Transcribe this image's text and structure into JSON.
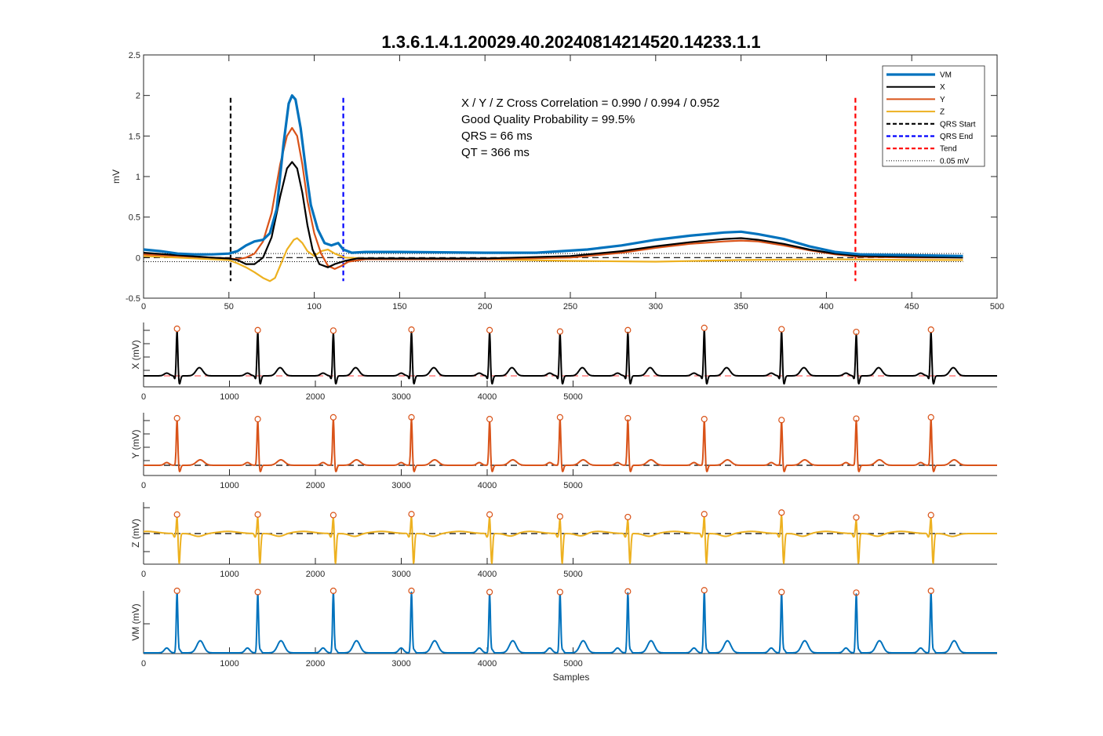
{
  "title": "1.3.6.1.4.1.20029.40.20240814214520.14233.1.1",
  "colors": {
    "vm": "#0072BD",
    "x": "#000000",
    "y": "#D95319",
    "z": "#EDB120",
    "qrs_start": "#000000",
    "qrs_end": "#0000FF",
    "tend": "#FF0000",
    "peak_marker": "#D95319",
    "baseline_x": "#FF6060",
    "baseline_other": "#000000"
  },
  "annotations": [
    "X / Y / Z Cross Correlation = 0.990 / 0.994 / 0.952",
    "Good Quality Probability = 99.5%",
    "QRS = 66 ms",
    "QT = 366 ms"
  ],
  "legend": {
    "placement": "top-right",
    "entries": [
      {
        "label": "VM",
        "style": "solid-thick",
        "color_key": "vm"
      },
      {
        "label": "X",
        "style": "solid",
        "color_key": "x"
      },
      {
        "label": "Y",
        "style": "solid",
        "color_key": "y"
      },
      {
        "label": "Z",
        "style": "solid",
        "color_key": "z"
      },
      {
        "label": "QRS Start",
        "style": "dashed",
        "color_key": "qrs_start"
      },
      {
        "label": "QRS End",
        "style": "dashed",
        "color_key": "qrs_end"
      },
      {
        "label": "Tend",
        "style": "dashed",
        "color_key": "tend"
      },
      {
        "label": "0.05 mV",
        "style": "dotted",
        "color_key": "qrs_start"
      }
    ]
  },
  "chart_data": [
    {
      "type": "line",
      "xlim": [
        0,
        500
      ],
      "ylim": [
        -0.5,
        2.5
      ],
      "xticks": [
        "0",
        "50",
        "100",
        "150",
        "200",
        "250",
        "300",
        "350",
        "400",
        "450",
        "500"
      ],
      "yticks": [
        "-0.5",
        "0",
        "0.5",
        "1",
        "1.5",
        "2",
        "2.5"
      ],
      "xlabel": "",
      "ylabel": "mV",
      "markers": {
        "qrs_start": 51,
        "qrs_end": 117,
        "tend": 417,
        "threshold": 0.05
      },
      "series": [
        {
          "name": "VM",
          "color_key": "vm",
          "points": [
            [
              0,
              0.1
            ],
            [
              10,
              0.08
            ],
            [
              20,
              0.05
            ],
            [
              30,
              0.04
            ],
            [
              40,
              0.04
            ],
            [
              50,
              0.05
            ],
            [
              55,
              0.08
            ],
            [
              60,
              0.15
            ],
            [
              65,
              0.2
            ],
            [
              70,
              0.22
            ],
            [
              74,
              0.3
            ],
            [
              78,
              0.6
            ],
            [
              82,
              1.4
            ],
            [
              85,
              1.9
            ],
            [
              87,
              2.0
            ],
            [
              89,
              1.95
            ],
            [
              92,
              1.6
            ],
            [
              95,
              1.1
            ],
            [
              98,
              0.65
            ],
            [
              102,
              0.35
            ],
            [
              106,
              0.18
            ],
            [
              110,
              0.15
            ],
            [
              114,
              0.18
            ],
            [
              117,
              0.1
            ],
            [
              122,
              0.06
            ],
            [
              130,
              0.07
            ],
            [
              150,
              0.07
            ],
            [
              200,
              0.06
            ],
            [
              230,
              0.06
            ],
            [
              260,
              0.1
            ],
            [
              280,
              0.15
            ],
            [
              300,
              0.22
            ],
            [
              320,
              0.27
            ],
            [
              340,
              0.31
            ],
            [
              350,
              0.32
            ],
            [
              360,
              0.29
            ],
            [
              375,
              0.23
            ],
            [
              390,
              0.14
            ],
            [
              405,
              0.07
            ],
            [
              420,
              0.04
            ],
            [
              450,
              0.03
            ],
            [
              480,
              0.02
            ]
          ]
        },
        {
          "name": "X",
          "color_key": "x",
          "points": [
            [
              0,
              0.06
            ],
            [
              20,
              0.03
            ],
            [
              40,
              0.0
            ],
            [
              50,
              -0.01
            ],
            [
              55,
              -0.03
            ],
            [
              60,
              -0.08
            ],
            [
              65,
              -0.08
            ],
            [
              70,
              0.0
            ],
            [
              75,
              0.25
            ],
            [
              80,
              0.75
            ],
            [
              84,
              1.1
            ],
            [
              87,
              1.18
            ],
            [
              90,
              1.1
            ],
            [
              93,
              0.8
            ],
            [
              96,
              0.4
            ],
            [
              99,
              0.1
            ],
            [
              103,
              -0.08
            ],
            [
              108,
              -0.12
            ],
            [
              112,
              -0.08
            ],
            [
              118,
              -0.04
            ],
            [
              125,
              -0.01
            ],
            [
              150,
              -0.01
            ],
            [
              200,
              -0.01
            ],
            [
              250,
              0.02
            ],
            [
              280,
              0.08
            ],
            [
              300,
              0.14
            ],
            [
              320,
              0.19
            ],
            [
              340,
              0.23
            ],
            [
              350,
              0.24
            ],
            [
              360,
              0.22
            ],
            [
              375,
              0.17
            ],
            [
              390,
              0.1
            ],
            [
              405,
              0.05
            ],
            [
              420,
              0.02
            ],
            [
              450,
              0.01
            ],
            [
              480,
              0.0
            ]
          ]
        },
        {
          "name": "Y",
          "color_key": "y",
          "points": [
            [
              0,
              0.04
            ],
            [
              20,
              0.02
            ],
            [
              40,
              0.0
            ],
            [
              50,
              -0.01
            ],
            [
              55,
              -0.02
            ],
            [
              60,
              0.0
            ],
            [
              65,
              0.05
            ],
            [
              70,
              0.2
            ],
            [
              75,
              0.55
            ],
            [
              80,
              1.15
            ],
            [
              84,
              1.5
            ],
            [
              87,
              1.6
            ],
            [
              90,
              1.5
            ],
            [
              93,
              1.15
            ],
            [
              96,
              0.7
            ],
            [
              100,
              0.3
            ],
            [
              104,
              0.05
            ],
            [
              108,
              -0.1
            ],
            [
              112,
              -0.14
            ],
            [
              116,
              -0.1
            ],
            [
              120,
              -0.05
            ],
            [
              130,
              -0.02
            ],
            [
              150,
              -0.02
            ],
            [
              200,
              -0.02
            ],
            [
              250,
              0.0
            ],
            [
              280,
              0.06
            ],
            [
              300,
              0.12
            ],
            [
              320,
              0.17
            ],
            [
              340,
              0.2
            ],
            [
              350,
              0.21
            ],
            [
              360,
              0.2
            ],
            [
              375,
              0.15
            ],
            [
              390,
              0.09
            ],
            [
              405,
              0.04
            ],
            [
              420,
              0.01
            ],
            [
              450,
              0.0
            ],
            [
              480,
              0.0
            ]
          ]
        },
        {
          "name": "Z",
          "color_key": "z",
          "points": [
            [
              0,
              0.02
            ],
            [
              20,
              0.0
            ],
            [
              40,
              -0.02
            ],
            [
              50,
              -0.03
            ],
            [
              55,
              -0.07
            ],
            [
              60,
              -0.12
            ],
            [
              65,
              -0.18
            ],
            [
              70,
              -0.25
            ],
            [
              74,
              -0.29
            ],
            [
              77,
              -0.25
            ],
            [
              80,
              -0.1
            ],
            [
              84,
              0.1
            ],
            [
              88,
              0.22
            ],
            [
              90,
              0.24
            ],
            [
              93,
              0.18
            ],
            [
              96,
              0.08
            ],
            [
              100,
              0.02
            ],
            [
              104,
              0.08
            ],
            [
              108,
              0.1
            ],
            [
              112,
              0.05
            ],
            [
              118,
              0.0
            ],
            [
              130,
              -0.01
            ],
            [
              200,
              -0.02
            ],
            [
              250,
              -0.04
            ],
            [
              300,
              -0.05
            ],
            [
              350,
              -0.03
            ],
            [
              400,
              -0.02
            ],
            [
              450,
              -0.03
            ],
            [
              480,
              -0.03
            ]
          ]
        }
      ]
    },
    {
      "type": "line",
      "ylabel": "X (mV)",
      "xlabel": "",
      "xlim": [
        0,
        6000
      ],
      "xticks": [
        "0",
        "1000",
        "2000",
        "3000",
        "4000",
        "5000"
      ],
      "series": [
        {
          "name": "X",
          "color_key": "x"
        }
      ],
      "beats": [
        390,
        1330,
        2210,
        3120,
        4030,
        4850,
        5640,
        6530,
        7430,
        8300,
        9170
      ],
      "peaks": [
        1.0,
        0.97,
        0.96,
        0.98,
        0.97,
        0.94,
        0.97,
        1.02,
        0.99,
        0.93,
        0.98
      ],
      "peak_labels": "circles"
    },
    {
      "type": "line",
      "ylabel": "Y (mV)",
      "xlabel": "",
      "xlim": [
        0,
        6000
      ],
      "xticks": [
        "0",
        "1000",
        "2000",
        "3000",
        "4000",
        "5000"
      ],
      "series": [
        {
          "name": "Y",
          "color_key": "y"
        }
      ],
      "beats": [
        390,
        1330,
        2210,
        3120,
        4030,
        4850,
        5640,
        6530,
        7430,
        8300,
        9170
      ],
      "peaks": [
        1.0,
        0.98,
        1.02,
        1.02,
        0.98,
        1.02,
        1.0,
        0.98,
        0.96,
        0.99,
        1.02
      ]
    },
    {
      "type": "line",
      "ylabel": "Z (mV)",
      "xlabel": "",
      "xlim": [
        0,
        6000
      ],
      "xticks": [
        "0",
        "1000",
        "2000",
        "3000",
        "4000",
        "5000"
      ],
      "series": [
        {
          "name": "Z",
          "color_key": "z"
        }
      ],
      "beats": [
        390,
        1330,
        2210,
        3120,
        4030,
        4850,
        5640,
        6530,
        7430,
        8300,
        9170
      ],
      "peaks": [
        0.9,
        0.9,
        0.87,
        0.92,
        0.9,
        0.8,
        0.77,
        0.92,
        1.0,
        0.75,
        0.87
      ]
    },
    {
      "type": "line",
      "ylabel": "VM (mV)",
      "xlabel": "Samples",
      "xlim": [
        0,
        6000
      ],
      "xticks": [
        "0",
        "1000",
        "2000",
        "3000",
        "4000",
        "5000"
      ],
      "series": [
        {
          "name": "VM",
          "color_key": "vm"
        }
      ],
      "beats": [
        390,
        1330,
        2210,
        3120,
        4030,
        4850,
        5640,
        6530,
        7430,
        8300,
        9170
      ],
      "peaks": [
        1.0,
        0.98,
        1.0,
        1.0,
        0.98,
        0.98,
        0.99,
        1.01,
        0.98,
        0.97,
        1.0
      ]
    }
  ]
}
